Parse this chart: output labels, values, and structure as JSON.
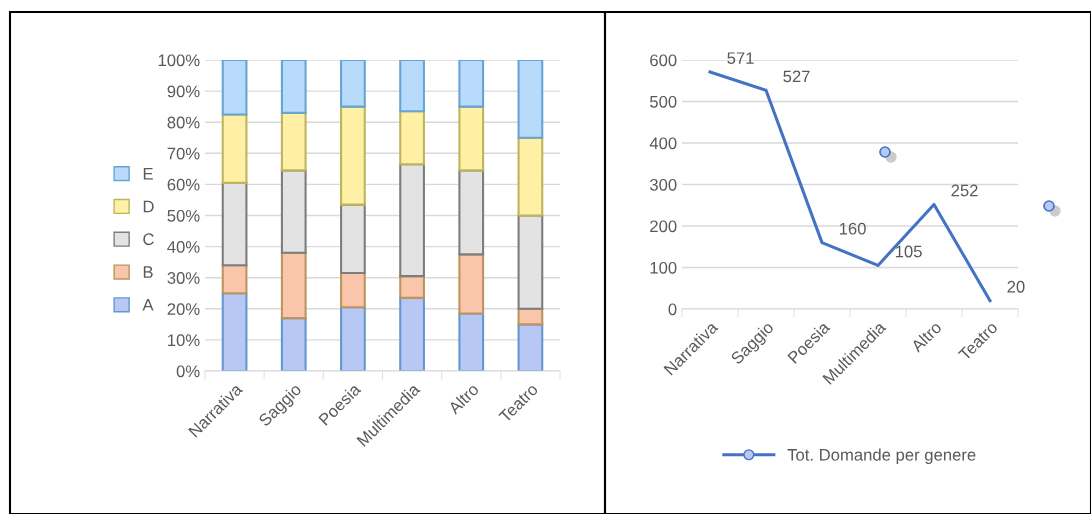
{
  "chart_data": [
    {
      "type": "bar",
      "stacked": true,
      "categories": [
        "Narrativa",
        "Saggio",
        "Poesia",
        "Multimedia",
        "Altro",
        "Teatro"
      ],
      "ylim": [
        0,
        100
      ],
      "yticks": [
        {
          "value": 0,
          "label": "0%"
        },
        {
          "value": 10,
          "label": "10%"
        },
        {
          "value": 20,
          "label": "20%"
        },
        {
          "value": 30,
          "label": "30%"
        },
        {
          "value": 40,
          "label": "40%"
        },
        {
          "value": 50,
          "label": "50%"
        },
        {
          "value": 60,
          "label": "60%"
        },
        {
          "value": 70,
          "label": "70%"
        },
        {
          "value": 80,
          "label": "80%"
        },
        {
          "value": 90,
          "label": "90%"
        },
        {
          "value": 100,
          "label": "100%"
        }
      ],
      "grid": "y",
      "legend": "left",
      "series": [
        {
          "name": "A",
          "color": "#b7c8f5",
          "values": [
            25,
            17,
            20.5,
            23.5,
            18.5,
            15
          ]
        },
        {
          "name": "B",
          "color": "#f9c6ab",
          "values": [
            9,
            21,
            11,
            7,
            19,
            5
          ]
        },
        {
          "name": "C",
          "color": "#e3e3e3",
          "values": [
            26.5,
            26.5,
            22,
            36,
            27,
            30
          ]
        },
        {
          "name": "D",
          "color": "#fff0a6",
          "values": [
            22,
            18.5,
            31.5,
            17,
            20.5,
            25
          ]
        },
        {
          "name": "E",
          "color": "#b9dbfb",
          "values": [
            17.5,
            17,
            15,
            16.5,
            15,
            25
          ]
        }
      ]
    },
    {
      "type": "line",
      "categories": [
        "Narrativa",
        "Saggio",
        "Poesia",
        "Multimedia",
        "Altro",
        "Teatro"
      ],
      "ylim": [
        0,
        600
      ],
      "yticks": [
        0,
        100,
        200,
        300,
        400,
        500,
        600
      ],
      "grid": "y",
      "legend": "bottom",
      "data_labels": true,
      "series": [
        {
          "name": "Tot. Domande per genere",
          "color": "#4472c4",
          "values": [
            571,
            527,
            160,
            105,
            252,
            20
          ]
        }
      ]
    }
  ]
}
